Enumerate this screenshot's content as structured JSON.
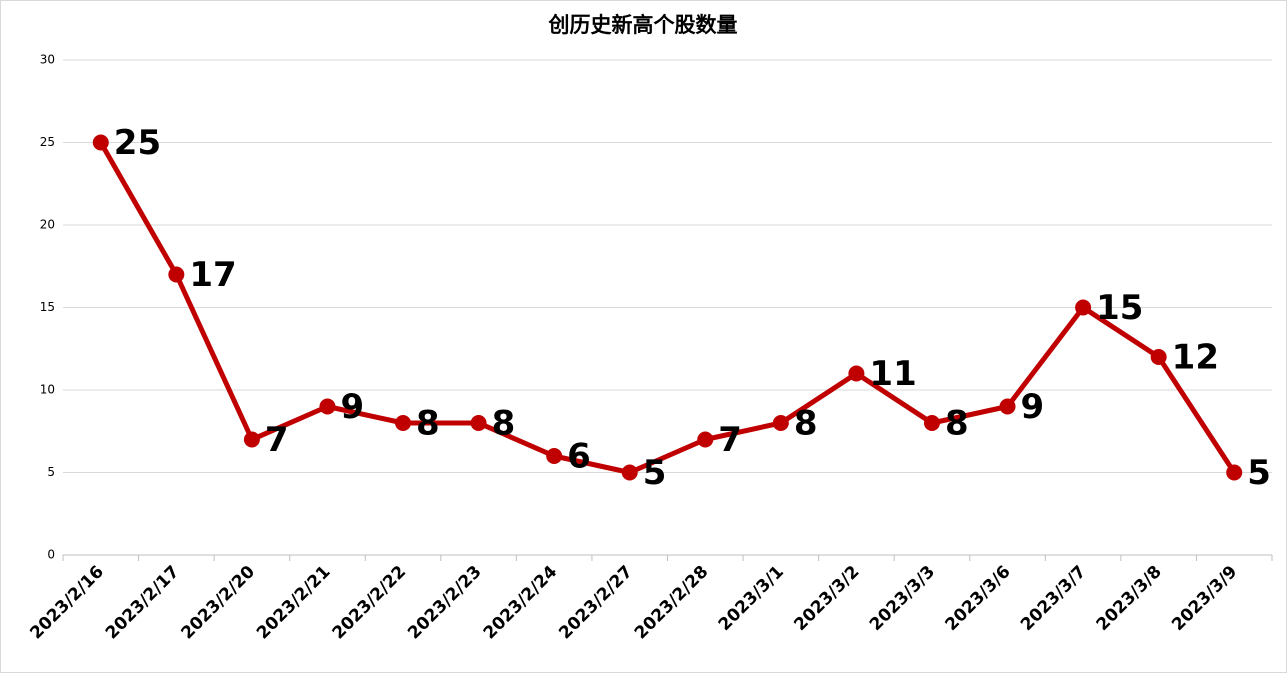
{
  "chart_data": {
    "type": "line",
    "title": "创历史新高个股数量",
    "categories": [
      "2023/2/16",
      "2023/2/17",
      "2023/2/20",
      "2023/2/21",
      "2023/2/22",
      "2023/2/23",
      "2023/2/24",
      "2023/2/27",
      "2023/2/28",
      "2023/3/1",
      "2023/3/2",
      "2023/3/3",
      "2023/3/6",
      "2023/3/7",
      "2023/3/8",
      "2023/3/9"
    ],
    "values": [
      25,
      17,
      7,
      9,
      8,
      8,
      6,
      5,
      7,
      8,
      11,
      8,
      9,
      15,
      12,
      5
    ],
    "color": "#c00000",
    "ylim": [
      0,
      30
    ],
    "yticks": [
      0,
      5,
      10,
      15,
      20,
      25,
      30
    ],
    "grid": true
  }
}
